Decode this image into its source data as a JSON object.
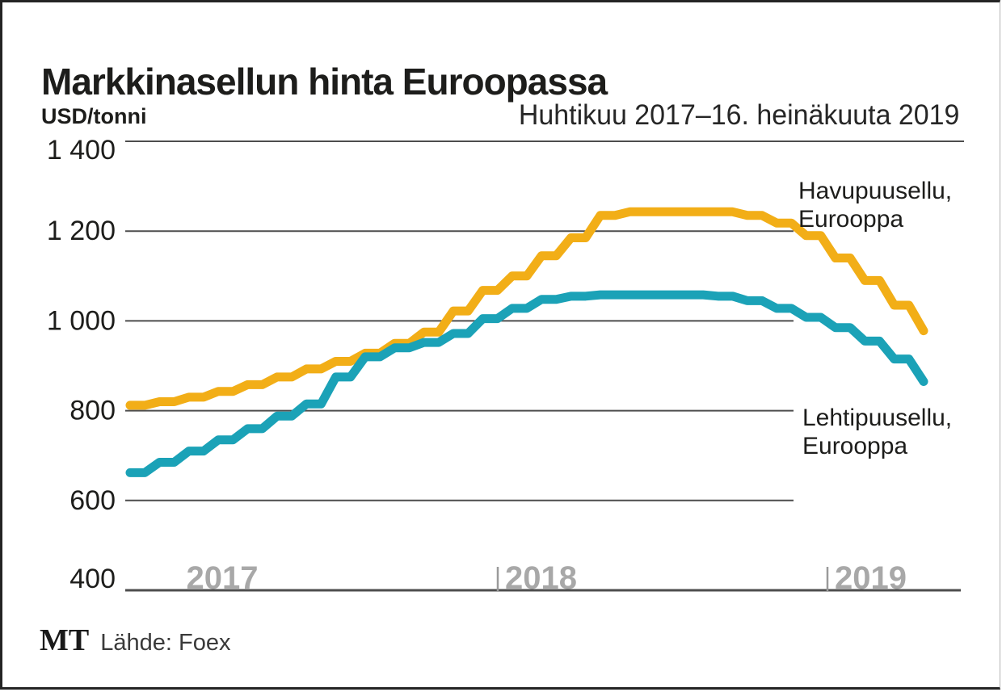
{
  "header": {
    "title": "Markkinasellun hinta Euroopassa",
    "unit_label": "USD/tonni",
    "period_label": "Huhtikuu 2017–16. heinäkuuta 2019"
  },
  "chart_data": {
    "type": "line",
    "title": "Markkinasellun hinta Euroopassa",
    "subtitle": "Huhtikuu 2017–16. heinäkuuta 2019",
    "ylabel": "USD/tonni",
    "ylim": [
      400,
      1400
    ],
    "y_ticks": [
      1400,
      1200,
      1000,
      800,
      600,
      400
    ],
    "y_tick_labels": [
      "1 400",
      "1 200",
      "1 000",
      "800",
      "600",
      "400"
    ],
    "grid": "horizontal",
    "legend_position": "right-annotations",
    "x": [
      "4/2017",
      "5/2017",
      "6/2017",
      "7/2017",
      "8/2017",
      "9/2017",
      "10/2017",
      "11/2017",
      "12/2017",
      "1/2018",
      "2/2018",
      "3/2018",
      "4/2018",
      "5/2018",
      "6/2018",
      "7/2018",
      "8/2018",
      "9/2018",
      "10/2018",
      "11/2018",
      "12/2018",
      "1/2019",
      "2/2019",
      "3/2019",
      "4/2019",
      "5/2019",
      "6/2019",
      "7/2019"
    ],
    "year_labels": [
      "2017",
      "2018",
      "2019"
    ],
    "series": [
      {
        "name": "Havupuusellu, Eurooppa",
        "color": "#F2AE17",
        "values": [
          812,
          820,
          830,
          843,
          858,
          875,
          893,
          910,
          928,
          950,
          975,
          1022,
          1068,
          1100,
          1145,
          1185,
          1235,
          1243,
          1243,
          1243,
          1243,
          1235,
          1218,
          1190,
          1140,
          1090,
          1035,
          978
        ]
      },
      {
        "name": "Lehtipuusellu, Eurooppa",
        "color": "#1BA2B7",
        "values": [
          662,
          685,
          710,
          735,
          760,
          788,
          815,
          875,
          920,
          940,
          952,
          972,
          1005,
          1028,
          1048,
          1055,
          1058,
          1058,
          1058,
          1058,
          1055,
          1045,
          1028,
          1008,
          985,
          955,
          915,
          865
        ]
      }
    ]
  },
  "annotations": {
    "softwood": {
      "line1": "Havupuusellu,",
      "line2": "Eurooppa"
    },
    "hardwood": {
      "line1": "Lehtipuusellu,",
      "line2": "Eurooppa"
    }
  },
  "footer": {
    "logo": "MT",
    "source": "Lähde: Foex"
  },
  "colors": {
    "softwood_line": "#F2AE17",
    "hardwood_line": "#1BA2B7",
    "grid_line": "#4d4d4d",
    "year_label": "#a8a8a8",
    "title_text": "#1d1d1b"
  }
}
